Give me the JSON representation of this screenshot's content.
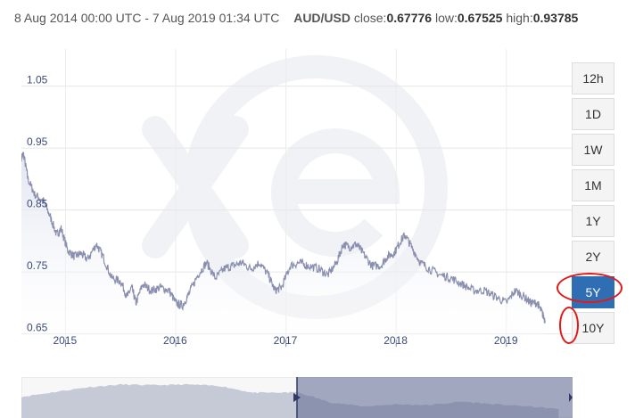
{
  "header": {
    "range_text": "8 Aug 2014 00:00 UTC - 7 Aug 2019 01:34 UTC",
    "pair": "AUD/USD",
    "close_label": "close:",
    "close_value": "0.67776",
    "low_label": "low:",
    "low_value": "0.67525",
    "high_label": "high:",
    "high_value": "0.93785"
  },
  "watermark": "xe-logo",
  "range_buttons": [
    {
      "label": "12h",
      "active": false
    },
    {
      "label": "1D",
      "active": false
    },
    {
      "label": "1W",
      "active": false
    },
    {
      "label": "1M",
      "active": false
    },
    {
      "label": "1Y",
      "active": false
    },
    {
      "label": "2Y",
      "active": false
    },
    {
      "label": "5Y",
      "active": true
    },
    {
      "label": "10Y",
      "active": false
    }
  ],
  "colors": {
    "line": "#8a8fb0",
    "area": "#dfe2ee",
    "active_button": "#2f6eb3",
    "annotation": "#e01a1a",
    "navigator_fill": "#5b6690",
    "navigator_left_fill": "#c6cad6"
  },
  "chart_data": {
    "type": "area",
    "title": "",
    "xlabel": "",
    "ylabel": "",
    "y_ticks": [
      "1.05",
      "0.95",
      "0.85",
      "0.75",
      "0.65"
    ],
    "y_tick_values": [
      1.05,
      0.95,
      0.85,
      0.75,
      0.65
    ],
    "ylim": [
      0.635,
      1.11
    ],
    "x_ticks": [
      "2015",
      "2016",
      "2017",
      "2018",
      "2019"
    ],
    "x_tick_values": [
      2015.0,
      2016.0,
      2017.0,
      2018.0,
      2019.0
    ],
    "xlim": [
      2014.6,
      2019.6
    ],
    "grid": true,
    "series": [
      {
        "values_x": [
          2014.6,
          2014.62,
          2014.66,
          2014.72,
          2014.8,
          2014.86,
          2014.92,
          2014.96,
          2015.02,
          2015.08,
          2015.14,
          2015.2,
          2015.28,
          2015.34,
          2015.42,
          2015.5,
          2015.56,
          2015.6,
          2015.64,
          2015.7,
          2015.78,
          2015.86,
          2015.94,
          2016.0,
          2016.06,
          2016.12,
          2016.2,
          2016.28,
          2016.36,
          2016.44,
          2016.52,
          2016.6,
          2016.68,
          2016.76,
          2016.84,
          2016.9,
          2016.96,
          2017.04,
          2017.12,
          2017.2,
          2017.3,
          2017.38,
          2017.46,
          2017.52,
          2017.58,
          2017.64,
          2017.7,
          2017.78,
          2017.86,
          2017.92,
          2017.98,
          2018.04,
          2018.08,
          2018.14,
          2018.22,
          2018.3,
          2018.4,
          2018.5,
          2018.6,
          2018.7,
          2018.8,
          2018.9,
          2019.0,
          2019.08,
          2019.16,
          2019.22,
          2019.28,
          2019.32,
          2019.35
        ],
        "values_y": [
          0.935,
          0.94,
          0.9,
          0.875,
          0.865,
          0.84,
          0.81,
          0.82,
          0.785,
          0.775,
          0.78,
          0.77,
          0.795,
          0.775,
          0.74,
          0.735,
          0.71,
          0.725,
          0.7,
          0.73,
          0.72,
          0.725,
          0.72,
          0.7,
          0.695,
          0.715,
          0.745,
          0.765,
          0.74,
          0.755,
          0.76,
          0.765,
          0.755,
          0.765,
          0.745,
          0.72,
          0.725,
          0.76,
          0.765,
          0.76,
          0.755,
          0.745,
          0.765,
          0.795,
          0.79,
          0.795,
          0.78,
          0.76,
          0.76,
          0.775,
          0.78,
          0.8,
          0.81,
          0.79,
          0.765,
          0.755,
          0.745,
          0.74,
          0.73,
          0.72,
          0.72,
          0.71,
          0.7,
          0.72,
          0.71,
          0.7,
          0.7,
          0.685,
          0.672
        ]
      }
    ],
    "navigator": {
      "selected_range": [
        2014.6,
        2019.6
      ],
      "values_x": [
        2009.6,
        2010.2,
        2010.8,
        2011.4,
        2012.0,
        2012.6,
        2013.2,
        2013.8,
        2014.3,
        2014.6,
        2015.2,
        2015.8,
        2016.4,
        2017.0,
        2017.6,
        2018.2,
        2018.8,
        2019.35
      ],
      "values_y": [
        0.86,
        0.93,
        1.0,
        1.04,
        1.03,
        1.04,
        1.02,
        0.92,
        0.92,
        0.93,
        0.78,
        0.72,
        0.75,
        0.74,
        0.79,
        0.75,
        0.72,
        0.68
      ]
    }
  }
}
